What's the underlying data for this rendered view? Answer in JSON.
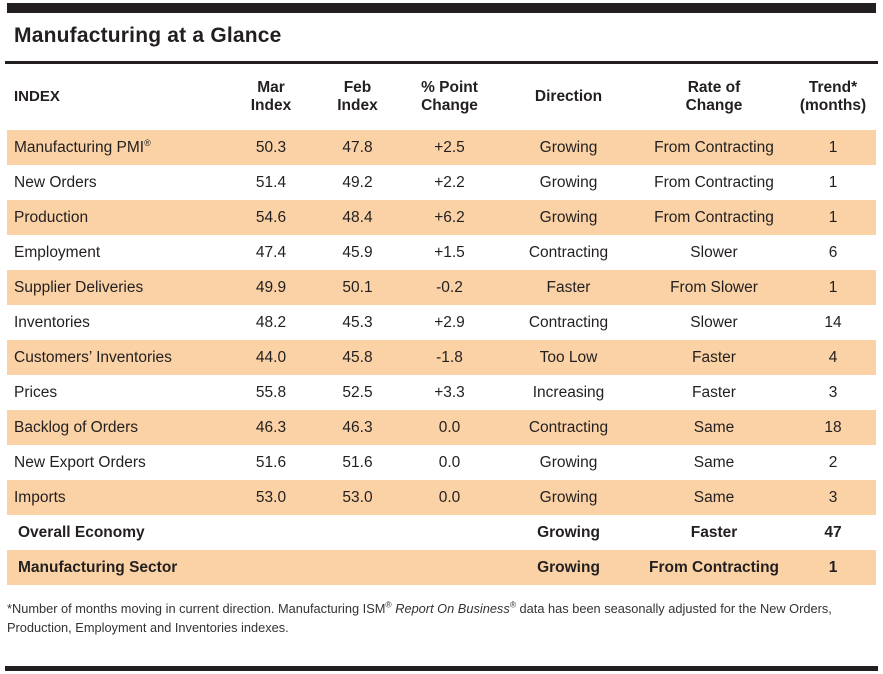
{
  "title": "Manufacturing at a Glance",
  "colors": {
    "row_highlight": "#fad2a5",
    "bar": "#231f20",
    "text": "#231f20"
  },
  "table": {
    "headers": {
      "index": "INDEX",
      "mar": "Mar\nIndex",
      "feb": "Feb\nIndex",
      "change": "% Point\nChange",
      "direction": "Direction",
      "rate": "Rate of\nChange",
      "trend": "Trend*\n(months)"
    },
    "rows": [
      {
        "index": "Manufacturing PMI",
        "mark": "®",
        "mar": "50.3",
        "feb": "47.8",
        "change": "+2.5",
        "direction": "Growing",
        "rate": "From Contracting",
        "trend": "1",
        "shaded": true,
        "bold": false
      },
      {
        "index": "New Orders",
        "mar": "51.4",
        "feb": "49.2",
        "change": "+2.2",
        "direction": "Growing",
        "rate": "From Contracting",
        "trend": "1",
        "shaded": false,
        "bold": false
      },
      {
        "index": "Production",
        "mar": "54.6",
        "feb": "48.4",
        "change": "+6.2",
        "direction": "Growing",
        "rate": "From Contracting",
        "trend": "1",
        "shaded": true,
        "bold": false
      },
      {
        "index": "Employment",
        "mar": "47.4",
        "feb": "45.9",
        "change": "+1.5",
        "direction": "Contracting",
        "rate": "Slower",
        "trend": "6",
        "shaded": false,
        "bold": false
      },
      {
        "index": "Supplier Deliveries",
        "mar": "49.9",
        "feb": "50.1",
        "change": "-0.2",
        "direction": "Faster",
        "rate": "From Slower",
        "trend": "1",
        "shaded": true,
        "bold": false
      },
      {
        "index": "Inventories",
        "mar": "48.2",
        "feb": "45.3",
        "change": "+2.9",
        "direction": "Contracting",
        "rate": "Slower",
        "trend": "14",
        "shaded": false,
        "bold": false
      },
      {
        "index": "Customers’ Inventories",
        "mar": "44.0",
        "feb": "45.8",
        "change": "-1.8",
        "direction": "Too Low",
        "rate": "Faster",
        "trend": "4",
        "shaded": true,
        "bold": false
      },
      {
        "index": "Prices",
        "mar": "55.8",
        "feb": "52.5",
        "change": "+3.3",
        "direction": "Increasing",
        "rate": "Faster",
        "trend": "3",
        "shaded": false,
        "bold": false
      },
      {
        "index": "Backlog of Orders",
        "mar": "46.3",
        "feb": "46.3",
        "change": "0.0",
        "direction": "Contracting",
        "rate": "Same",
        "trend": "18",
        "shaded": true,
        "bold": false
      },
      {
        "index": "New Export Orders",
        "mar": "51.6",
        "feb": "51.6",
        "change": "0.0",
        "direction": "Growing",
        "rate": "Same",
        "trend": "2",
        "shaded": false,
        "bold": false
      },
      {
        "index": "Imports",
        "mar": "53.0",
        "feb": "53.0",
        "change": "0.0",
        "direction": "Growing",
        "rate": "Same",
        "trend": "3",
        "shaded": true,
        "bold": false
      },
      {
        "index": "Overall Economy",
        "mar": "",
        "feb": "",
        "change": "",
        "direction": "Growing",
        "rate": "Faster",
        "trend": "47",
        "shaded": false,
        "bold": true
      },
      {
        "index": "Manufacturing Sector",
        "mar": "",
        "feb": "",
        "change": "",
        "direction": "Growing",
        "rate": "From Contracting",
        "trend": "1",
        "shaded": true,
        "bold": true
      }
    ]
  },
  "footnote": {
    "text_start": "*Number of months moving in current direction. Manufacturing ISM",
    "reg_mark_1": "®",
    "italic_title": " Report On Business",
    "reg_mark_2": "®",
    "text_end": " data has been seasonally adjusted for the New Orders, Production, Employment and Inventories indexes."
  }
}
